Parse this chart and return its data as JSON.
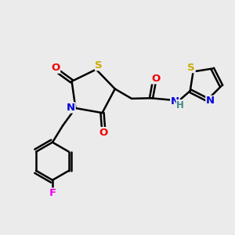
{
  "bg_color": "#ebebeb",
  "atom_colors": {
    "S": "#ccaa00",
    "N": "#0000dd",
    "O": "#ee0000",
    "F": "#ee00ee",
    "C": "#000000",
    "H": "#448888"
  },
  "bond_color": "#000000",
  "lw": 1.8,
  "fontsize": 9.5
}
